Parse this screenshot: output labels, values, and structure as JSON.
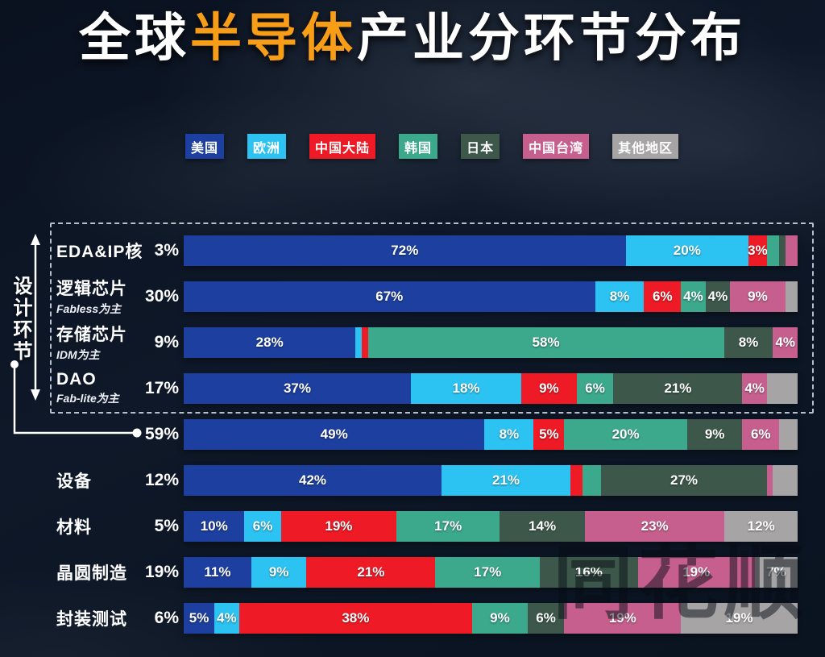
{
  "title": {
    "prefix": "全球",
    "highlight": "半导体",
    "suffix": "产业分环节分布"
  },
  "legend": [
    {
      "label": "美国",
      "color": "#1d3f9f"
    },
    {
      "label": "欧洲",
      "color": "#2cc3f2"
    },
    {
      "label": "中国大陆",
      "color": "#ee1b26"
    },
    {
      "label": "韩国",
      "color": "#3ca88c"
    },
    {
      "label": "日本",
      "color": "#3d584b"
    },
    {
      "label": "中国台湾",
      "color": "#c75f8e"
    },
    {
      "label": "其他地区",
      "color": "#a6a4a4"
    }
  ],
  "annotation": {
    "label": "设计环节",
    "value": "59%"
  },
  "watermark": "同花顺",
  "chart_data": {
    "type": "bar",
    "stacked": true,
    "orientation": "horizontal",
    "unit": "%",
    "title": "全球半导体产业分环节分布",
    "legend_position": "top",
    "series_names": [
      "美国",
      "欧洲",
      "中国大陆",
      "韩国",
      "日本",
      "中国台湾",
      "其他地区"
    ],
    "series_colors": [
      "#1d3f9f",
      "#2cc3f2",
      "#ee1b26",
      "#3ca88c",
      "#3d584b",
      "#c75f8e",
      "#a6a4a4"
    ],
    "rows": [
      {
        "name": "EDA&IP核",
        "subname": "",
        "total": "3%",
        "values": [
          72,
          20,
          3,
          2,
          1,
          2,
          0
        ],
        "labels": [
          "72%",
          "20%",
          "3%",
          "",
          "",
          "",
          ""
        ]
      },
      {
        "name": "逻辑芯片",
        "subname": "Fabless为主",
        "total": "30%",
        "values": [
          67,
          8,
          6,
          4,
          4,
          9,
          2
        ],
        "labels": [
          "67%",
          "8%",
          "6%",
          "4%",
          "4%",
          "9%",
          ""
        ]
      },
      {
        "name": "存储芯片",
        "subname": "IDM为主",
        "total": "9%",
        "values": [
          28,
          1,
          1,
          58,
          8,
          4,
          0
        ],
        "labels": [
          "28%",
          "",
          "",
          "58%",
          "8%",
          "4%",
          ""
        ]
      },
      {
        "name": "DAO",
        "subname": "Fab-lite为主",
        "total": "17%",
        "values": [
          37,
          18,
          9,
          6,
          21,
          4,
          5
        ],
        "labels": [
          "37%",
          "18%",
          "9%",
          "6%",
          "21%",
          "4%",
          ""
        ]
      },
      {
        "name": "",
        "subname": "",
        "total": "59%",
        "values": [
          49,
          8,
          5,
          20,
          9,
          6,
          3
        ],
        "labels": [
          "49%",
          "8%",
          "5%",
          "20%",
          "9%",
          "6%",
          ""
        ]
      },
      {
        "name": "设备",
        "subname": "",
        "total": "12%",
        "values": [
          42,
          21,
          2,
          3,
          27,
          1,
          4
        ],
        "labels": [
          "42%",
          "21%",
          "",
          "",
          "27%",
          "",
          ""
        ]
      },
      {
        "name": "材料",
        "subname": "",
        "total": "5%",
        "values": [
          10,
          6,
          19,
          17,
          14,
          23,
          12
        ],
        "labels": [
          "10%",
          "6%",
          "19%",
          "17%",
          "14%",
          "23%",
          "12%"
        ]
      },
      {
        "name": "晶圆制造",
        "subname": "",
        "total": "19%",
        "values": [
          11,
          9,
          21,
          17,
          16,
          19,
          7
        ],
        "labels": [
          "11%",
          "9%",
          "21%",
          "17%",
          "16%",
          "19%",
          "7%"
        ]
      },
      {
        "name": "封装测试",
        "subname": "",
        "total": "6%",
        "values": [
          5,
          4,
          38,
          9,
          6,
          19,
          19
        ],
        "labels": [
          "5%",
          "4%",
          "38%",
          "9%",
          "6%",
          "19%",
          "19%"
        ]
      }
    ]
  }
}
